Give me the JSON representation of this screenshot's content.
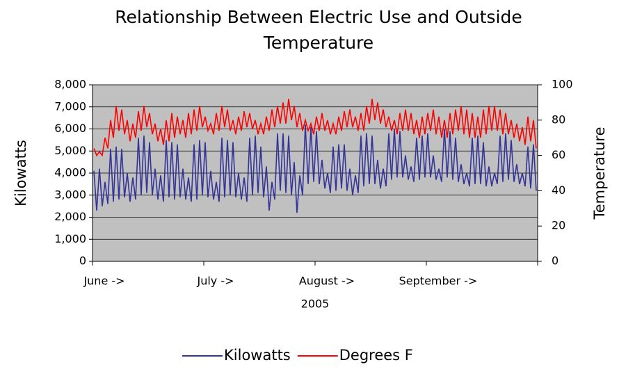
{
  "chart_data": {
    "type": "line",
    "title": "Relationship Between Electric Use and Outside Temperature",
    "xlabel": "2005",
    "ylabel": "Kilowatts",
    "y2label": "Temperature",
    "categories": [
      "June ->",
      null,
      null,
      null,
      null,
      null,
      null,
      null,
      null,
      null,
      null,
      null,
      null,
      null,
      null,
      null,
      null,
      null,
      null,
      null,
      null,
      null,
      null,
      null,
      null,
      null,
      null,
      null,
      null,
      null,
      null,
      null,
      null,
      null,
      null,
      null,
      null,
      null,
      null,
      null,
      "July ->",
      null,
      null,
      null,
      null,
      null,
      null,
      null,
      null,
      null,
      null,
      null,
      null,
      null,
      null,
      null,
      null,
      null,
      null,
      null,
      null,
      null,
      null,
      null,
      null,
      null,
      null,
      null,
      null,
      null,
      null,
      null,
      null,
      null,
      null,
      null,
      null,
      null,
      null,
      null,
      "August ->",
      null,
      null,
      null,
      null,
      null,
      null,
      null,
      null,
      null,
      null,
      null,
      null,
      null,
      null,
      null,
      null,
      null,
      null,
      null,
      null,
      null,
      null,
      null,
      null,
      null,
      null,
      null,
      null,
      null,
      null,
      null,
      null,
      null,
      null,
      null,
      null,
      null,
      null,
      null,
      "September ->",
      null,
      null,
      null,
      null,
      null,
      null,
      null,
      null,
      null,
      null,
      null,
      null,
      null,
      null,
      null,
      null,
      null,
      null,
      null,
      null,
      null,
      null,
      null,
      null,
      null,
      null,
      null,
      null,
      null,
      null,
      null,
      null,
      null,
      null,
      null,
      null,
      null,
      null,
      null
    ],
    "series": [
      {
        "name": "Kilowatts",
        "color": "#333399",
        "values": [
          4100,
          2300,
          4200,
          2500,
          3600,
          2600,
          5100,
          2700,
          5200,
          2800,
          5100,
          2900,
          4000,
          2700,
          3800,
          2800,
          5600,
          3000,
          5700,
          3100,
          5400,
          3000,
          4200,
          2800,
          3900,
          2700,
          5500,
          2900,
          5400,
          2800,
          5300,
          2900,
          4200,
          2800,
          3800,
          2700,
          5300,
          2800,
          5500,
          3000,
          5400,
          2900,
          4100,
          2800,
          3600,
          2700,
          5600,
          2900,
          5500,
          3000,
          5400,
          2900,
          4000,
          2800,
          3800,
          2700,
          5600,
          3000,
          5700,
          3100,
          5200,
          2900,
          4300,
          2300,
          3600,
          2800,
          5800,
          3200,
          5800,
          3100,
          5700,
          3000,
          4500,
          2200,
          3900,
          3000,
          6200,
          3500,
          6100,
          3600,
          5900,
          3500,
          4600,
          3300,
          4000,
          3100,
          5200,
          3200,
          5300,
          3300,
          5300,
          3200,
          4200,
          3000,
          3900,
          3100,
          5700,
          3400,
          5800,
          3500,
          5700,
          3500,
          4600,
          3300,
          4200,
          3400,
          5800,
          3700,
          6000,
          3800,
          5900,
          3800,
          4800,
          3700,
          4300,
          3600,
          5600,
          3700,
          5700,
          3800,
          5800,
          3800,
          4800,
          3700,
          4200,
          3600,
          6000,
          3800,
          5900,
          3700,
          5600,
          3600,
          4400,
          3500,
          4000,
          3400,
          5600,
          3500,
          5700,
          3500,
          5400,
          3400,
          4300,
          3400,
          4000,
          3500,
          5700,
          3600,
          5800,
          3700,
          5500,
          3600,
          4400,
          3500,
          4000,
          3400,
          5200,
          3300,
          5300,
          3200
        ]
      },
      {
        "name": "Degrees F",
        "color": "#ff0000",
        "axis": "y2",
        "values": [
          64,
          60,
          62,
          60,
          70,
          64,
          80,
          70,
          88,
          74,
          86,
          72,
          80,
          68,
          78,
          70,
          85,
          74,
          88,
          76,
          84,
          72,
          78,
          68,
          75,
          66,
          80,
          68,
          84,
          70,
          82,
          72,
          80,
          70,
          84,
          72,
          86,
          74,
          88,
          76,
          82,
          74,
          78,
          72,
          84,
          74,
          88,
          76,
          86,
          74,
          80,
          72,
          82,
          74,
          85,
          76,
          84,
          75,
          80,
          72,
          78,
          72,
          82,
          74,
          86,
          76,
          88,
          78,
          90,
          78,
          92,
          80,
          88,
          76,
          84,
          74,
          80,
          74,
          78,
          72,
          82,
          74,
          84,
          74,
          80,
          72,
          78,
          72,
          82,
          74,
          85,
          76,
          86,
          76,
          82,
          74,
          84,
          74,
          88,
          78,
          92,
          80,
          90,
          78,
          86,
          76,
          82,
          74,
          80,
          72,
          84,
          74,
          86,
          74,
          84,
          72,
          80,
          70,
          82,
          72,
          84,
          74,
          86,
          72,
          82,
          70,
          80,
          70,
          84,
          72,
          86,
          74,
          88,
          72,
          86,
          70,
          84,
          70,
          82,
          70,
          86,
          72,
          88,
          74,
          88,
          74,
          86,
          72,
          84,
          72,
          80,
          70,
          78,
          68,
          76,
          66,
          82,
          68,
          80,
          64
        ]
      }
    ],
    "ylim": [
      0,
      8000
    ],
    "yticks": [
      0,
      {
        "value": 1000,
        "label": "1,000"
      },
      {
        "value": 2000,
        "label": "2,000"
      },
      {
        "value": 3000,
        "label": "3,000"
      },
      {
        "value": 4000,
        "label": "4,000"
      },
      {
        "value": 5000,
        "label": "5,000"
      },
      {
        "value": 6000,
        "label": "6,000"
      },
      {
        "value": 7000,
        "label": "7,000"
      },
      {
        "value": 8000,
        "label": "8,000"
      }
    ],
    "y2lim": [
      0,
      100
    ],
    "y2ticks": [
      0,
      20,
      40,
      60,
      80,
      100
    ],
    "grid": true,
    "legend": "bottom"
  }
}
